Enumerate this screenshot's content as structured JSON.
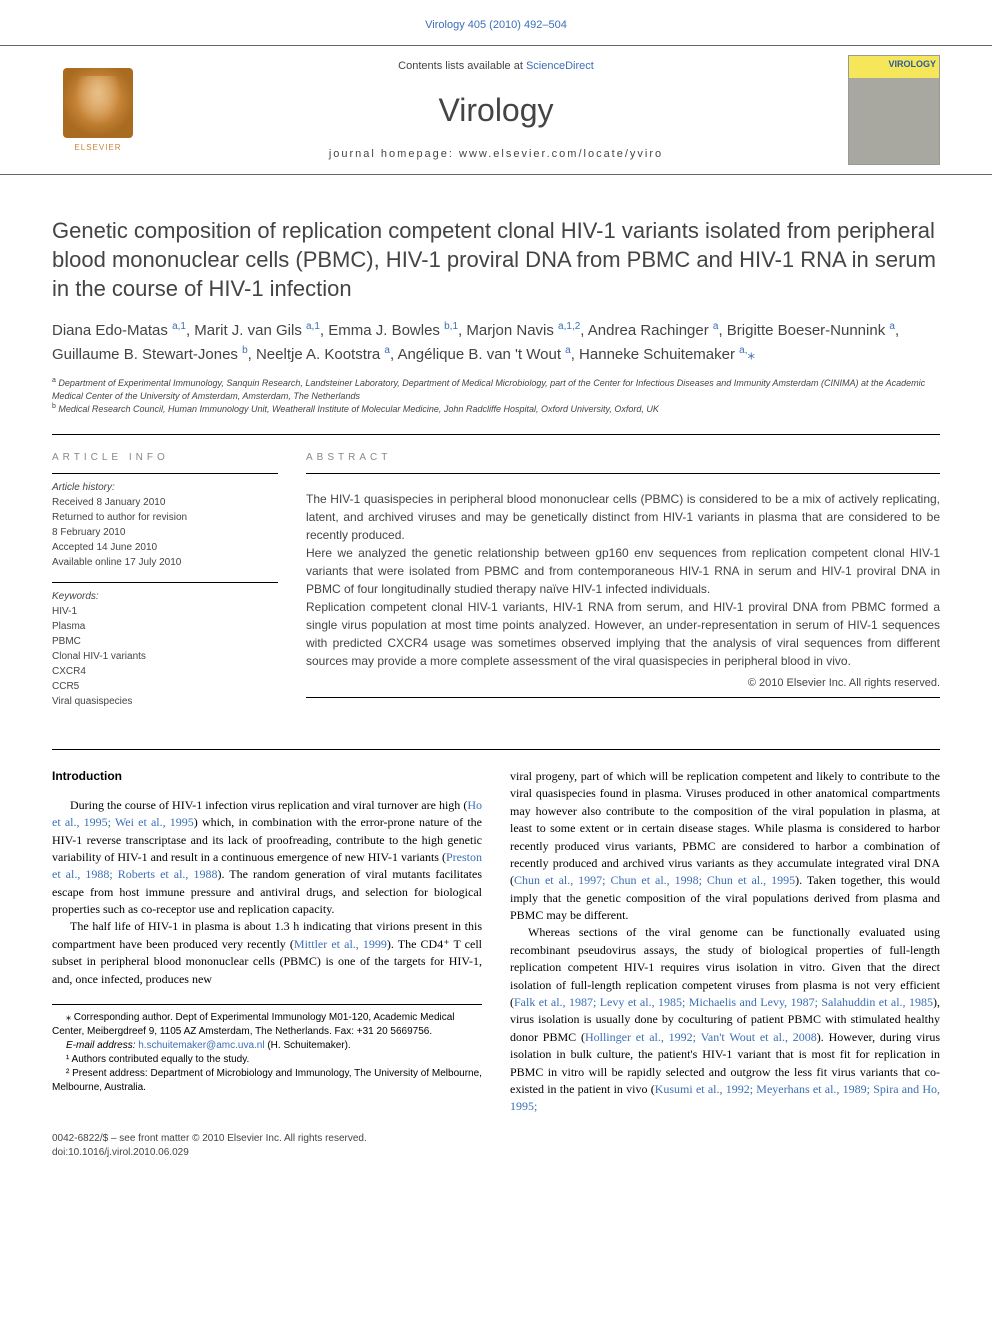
{
  "header_link": "Virology 405 (2010) 492–504",
  "masthead": {
    "contents_prefix": "Contents lists available at ",
    "contents_link": "ScienceDirect",
    "journal_name": "Virology",
    "homepage_prefix": "journal homepage: ",
    "homepage_url": "www.elsevier.com/locate/yviro",
    "elsevier_label": "ELSEVIER",
    "cover_label": "VIROLOGY"
  },
  "title": "Genetic composition of replication competent clonal HIV-1 variants isolated from peripheral blood mononuclear cells (PBMC), HIV-1 proviral DNA from PBMC and HIV-1 RNA in serum in the course of HIV-1 infection",
  "authors_html": "Diana Edo-Matas <span class='sup'>a,1</span>, Marit J. van Gils <span class='sup'>a,1</span>, Emma J. Bowles <span class='sup'>b,1</span>, Marjon Navis <span class='sup'>a,1,2</span>, Andrea Rachinger <span class='sup'>a</span>, Brigitte Boeser-Nunnink <span class='sup'>a</span>, Guillaume B. Stewart-Jones <span class='sup'>b</span>, Neeltje A. Kootstra <span class='sup'>a</span>, Angélique B. van 't Wout <span class='sup'>a</span>, Hanneke Schuitemaker <span class='sup'>a,</span><span class='star'>⁎</span>",
  "affiliations": {
    "a": "Department of Experimental Immunology, Sanquin Research, Landsteiner Laboratory, Department of Medical Microbiology, part of the Center for Infectious Diseases and Immunity Amsterdam (CINIMA) at the Academic Medical Center of the University of Amsterdam, Amsterdam, The Netherlands",
    "b": "Medical Research Council, Human Immunology Unit, Weatherall Institute of Molecular Medicine, John Radcliffe Hospital, Oxford University, Oxford, UK"
  },
  "article_info": {
    "heading": "ARTICLE INFO",
    "history_label": "Article history:",
    "history": [
      "Received 8 January 2010",
      "Returned to author for revision",
      "8 February 2010",
      "Accepted 14 June 2010",
      "Available online 17 July 2010"
    ],
    "keywords_label": "Keywords:",
    "keywords": [
      "HIV-1",
      "Plasma",
      "PBMC",
      "Clonal HIV-1 variants",
      "CXCR4",
      "CCR5",
      "Viral quasispecies"
    ]
  },
  "abstract": {
    "heading": "ABSTRACT",
    "p1": "The HIV-1 quasispecies in peripheral blood mononuclear cells (PBMC) is considered to be a mix of actively replicating, latent, and archived viruses and may be genetically distinct from HIV-1 variants in plasma that are considered to be recently produced.",
    "p2": "Here we analyzed the genetic relationship between gp160 env sequences from replication competent clonal HIV-1 variants that were isolated from PBMC and from contemporaneous HIV-1 RNA in serum and HIV-1 proviral DNA in PBMC of four longitudinally studied therapy naïve HIV-1 infected individuals.",
    "p3": "Replication competent clonal HIV-1 variants, HIV-1 RNA from serum, and HIV-1 proviral DNA from PBMC formed a single virus population at most time points analyzed. However, an under-representation in serum of HIV-1 sequences with predicted CXCR4 usage was sometimes observed implying that the analysis of viral sequences from different sources may provide a more complete assessment of the viral quasispecies in peripheral blood in vivo.",
    "copyright": "© 2010 Elsevier Inc. All rights reserved."
  },
  "intro": {
    "heading": "Introduction",
    "left_p1_pre": "During the course of HIV-1 infection virus replication and viral turnover are high (",
    "left_p1_cite1": "Ho et al., 1995; Wei et al., 1995",
    "left_p1_mid": ") which, in combination with the error-prone nature of the HIV-1 reverse transcriptase and its lack of proofreading, contribute to the high genetic variability of HIV-1 and result in a continuous emergence of new HIV-1 variants (",
    "left_p1_cite2": "Preston et al., 1988; Roberts et al., 1988",
    "left_p1_post": "). The random generation of viral mutants facilitates escape from host immune pressure and antiviral drugs, and selection for biological properties such as co-receptor use and replication capacity.",
    "left_p2_pre": "The half life of HIV-1 in plasma is about 1.3 h indicating that virions present in this compartment have been produced very recently (",
    "left_p2_cite": "Mittler et al., 1999",
    "left_p2_post": "). The CD4⁺ T cell subset in peripheral blood mononuclear cells (PBMC) is one of the targets for HIV-1, and, once infected, produces new",
    "right_p1_pre": "viral progeny, part of which will be replication competent and likely to contribute to the viral quasispecies found in plasma. Viruses produced in other anatomical compartments may however also contribute to the composition of the viral population in plasma, at least to some extent or in certain disease stages. While plasma is considered to harbor recently produced virus variants, PBMC are considered to harbor a combination of recently produced and archived virus variants as they accumulate integrated viral DNA (",
    "right_p1_cite": "Chun et al., 1997; Chun et al., 1998; Chun et al., 1995",
    "right_p1_post": "). Taken together, this would imply that the genetic composition of the viral populations derived from plasma and PBMC may be different.",
    "right_p2_pre": "Whereas sections of the viral genome can be functionally evaluated using recombinant pseudovirus assays, the study of biological properties of full-length replication competent HIV-1 requires virus isolation in vitro. Given that the direct isolation of full-length replication competent viruses from plasma is not very efficient (",
    "right_p2_cite1": "Falk et al., 1987; Levy et al., 1985; Michaelis and Levy, 1987; Salahuddin et al., 1985",
    "right_p2_mid": "), virus isolation is usually done by coculturing of patient PBMC with stimulated healthy donor PBMC (",
    "right_p2_cite2": "Hollinger et al., 1992; Van't Wout et al., 2008",
    "right_p2_mid2": "). However, during virus isolation in bulk culture, the patient's HIV-1 variant that is most fit for replication in PBMC in vitro will be rapidly selected and outgrow the less fit virus variants that co-existed in the patient in vivo (",
    "right_p2_cite3": "Kusumi et al., 1992; Meyerhans et al., 1989; Spira and Ho, 1995;"
  },
  "footnotes": {
    "corr": "⁎ Corresponding author. Dept of Experimental Immunology M01-120, Academic Medical Center, Meibergdreef 9, 1105 AZ Amsterdam, The Netherlands. Fax: +31 20 5669756.",
    "email_label": "E-mail address: ",
    "email": "h.schuitemaker@amc.uva.nl",
    "email_suffix": " (H. Schuitemaker).",
    "n1": "¹ Authors contributed equally to the study.",
    "n2": "² Present address: Department of Microbiology and Immunology, The University of Melbourne, Melbourne, Australia."
  },
  "footer": {
    "issn": "0042-6822/$ – see front matter © 2010 Elsevier Inc. All rights reserved.",
    "doi": "doi:10.1016/j.virol.2010.06.029"
  },
  "colors": {
    "link": "#3a6fb7",
    "text": "#444444",
    "elsevier": "#c78538"
  }
}
